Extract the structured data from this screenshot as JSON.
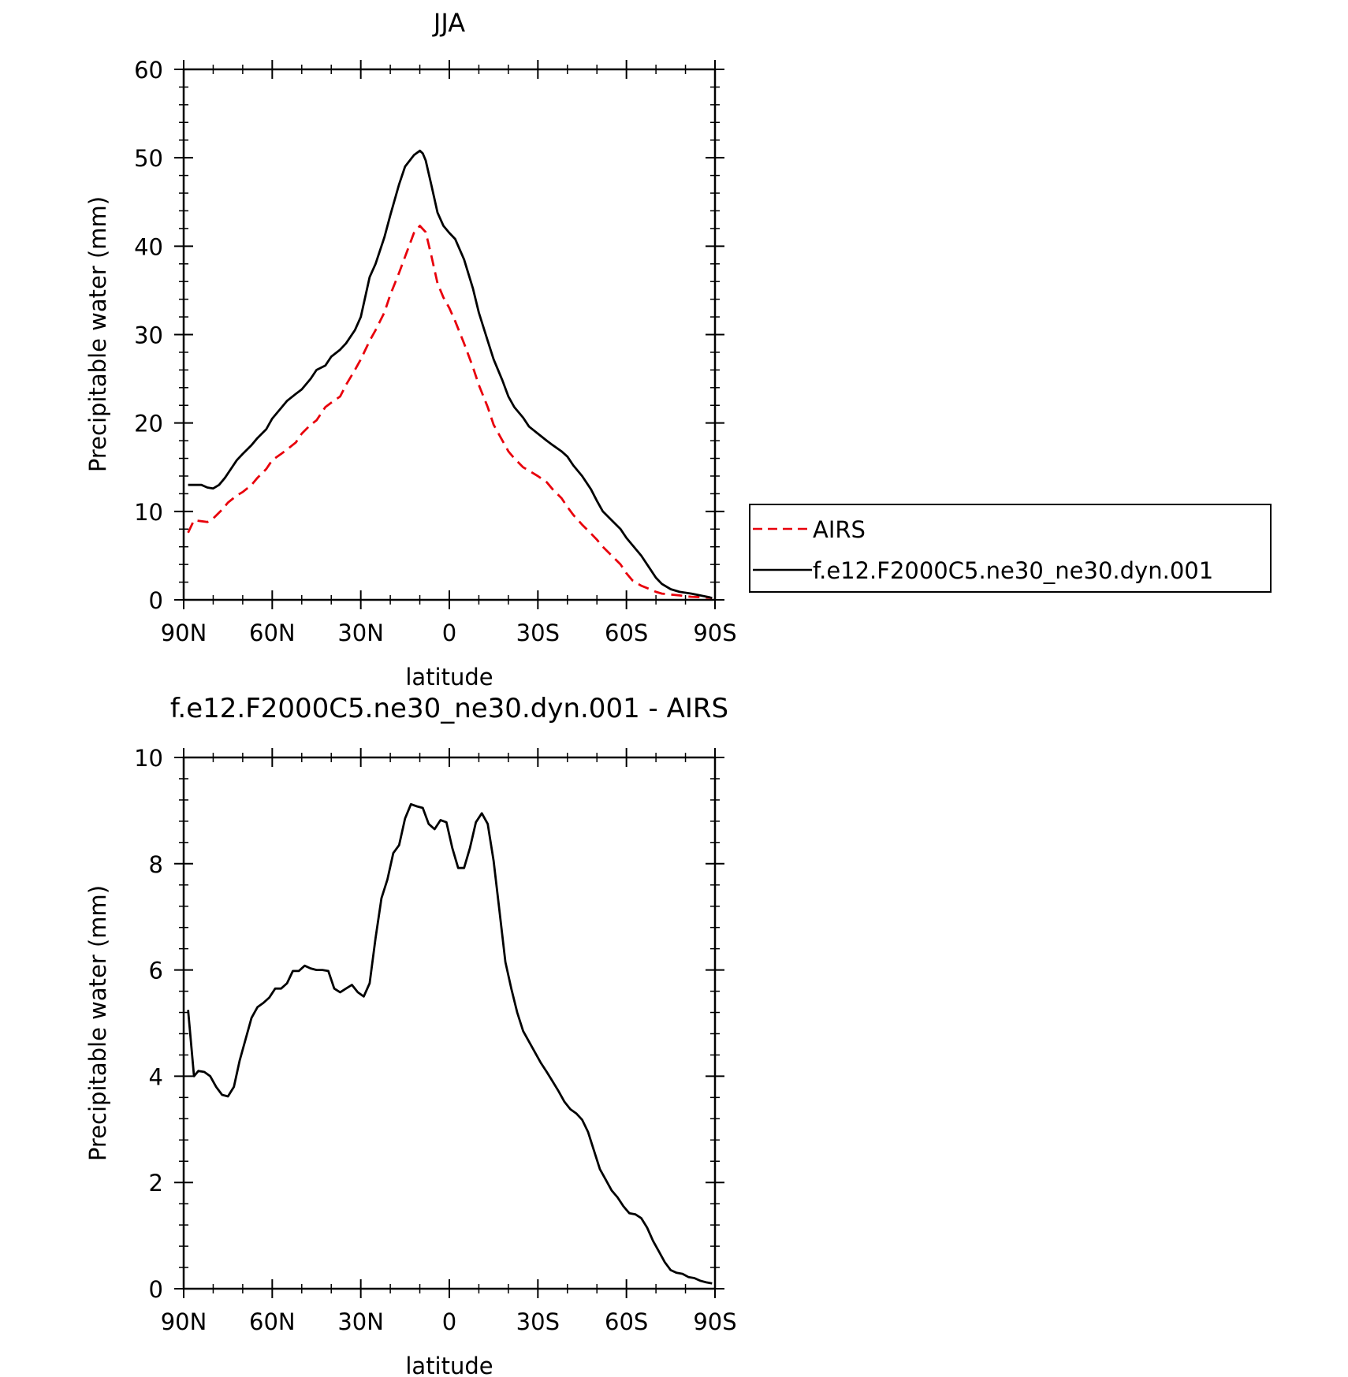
{
  "chart_data": [
    {
      "type": "line",
      "title": "JJA",
      "xlabel": "latitude",
      "ylabel": "Precipitable water (mm)",
      "xlim": [
        90,
        -90
      ],
      "ylim": [
        0,
        60
      ],
      "xticks": [
        90,
        60,
        30,
        0,
        -30,
        -60,
        -90
      ],
      "xticklabels": [
        "90N",
        "60N",
        "30N",
        "0",
        "30S",
        "60S",
        "90S"
      ],
      "yticks": [
        0,
        10,
        20,
        30,
        40,
        50,
        60
      ],
      "yticklabels": [
        "0",
        "10",
        "20",
        "30",
        "40",
        "50",
        "60"
      ],
      "legend": "right",
      "grid": false,
      "series": [
        {
          "name": "AIRS",
          "color": "#e8000b",
          "style": "dashed",
          "x": [
            88.5,
            86.5,
            82,
            80,
            77,
            75,
            72,
            70,
            67,
            65,
            62,
            60,
            57,
            55,
            52,
            50,
            47,
            45,
            42,
            40,
            37,
            35,
            32,
            30,
            27,
            25,
            22,
            20,
            17,
            15,
            12,
            10,
            8,
            6,
            4,
            2,
            0,
            -2,
            -5,
            -8,
            -10,
            -13,
            -15,
            -18,
            -20,
            -22,
            -25,
            -27,
            -30,
            -33,
            -35,
            -38,
            -40,
            -42,
            -45,
            -48,
            -50,
            -52,
            -55,
            -58,
            -60,
            -62,
            -65,
            -68,
            -70,
            -72,
            -75,
            -78,
            -80,
            -82,
            -85,
            -88,
            -89
          ],
          "y": [
            7.6,
            9,
            8.8,
            9.2,
            10.2,
            11,
            11.8,
            12.2,
            13,
            13.8,
            14.8,
            15.8,
            16.5,
            17,
            17.8,
            18.8,
            19.8,
            20.3,
            21.8,
            22.3,
            23,
            24.3,
            26,
            27.2,
            29.3,
            30.5,
            32.5,
            34.5,
            37,
            38.8,
            41.5,
            42.3,
            41.6,
            38.8,
            35.8,
            34.2,
            33,
            31.5,
            29,
            26.3,
            24.3,
            21.8,
            19.8,
            18,
            16.8,
            16,
            15,
            14.6,
            14,
            13.3,
            12.5,
            11.5,
            10.5,
            9.6,
            8.5,
            7.5,
            6.8,
            6,
            5,
            4,
            3,
            2.2,
            1.6,
            1.2,
            0.9,
            0.7,
            0.6,
            0.5,
            0.4,
            0.35,
            0.3,
            0.25,
            0.2
          ]
        },
        {
          "name": "f.e12.F2000C5.ne30_ne30.dyn.001",
          "color": "#000000",
          "style": "solid",
          "x": [
            88.5,
            86,
            84,
            82,
            80,
            78,
            76,
            74,
            72,
            70,
            67,
            65,
            62,
            60,
            57,
            55,
            52,
            50,
            47,
            45,
            42,
            40,
            37,
            35,
            32,
            30,
            27,
            25,
            22,
            20,
            17,
            15,
            12,
            10,
            9,
            8,
            6,
            4,
            2,
            0,
            -2,
            -5,
            -8,
            -10,
            -13,
            -15,
            -18,
            -20,
            -22,
            -25,
            -27,
            -30,
            -33,
            -35,
            -38,
            -40,
            -42,
            -45,
            -48,
            -50,
            -52,
            -55,
            -58,
            -60,
            -62,
            -65,
            -68,
            -70,
            -72,
            -75,
            -78,
            -80,
            -82,
            -85,
            -88,
            -89
          ],
          "y": [
            13,
            13,
            13,
            12.7,
            12.6,
            13,
            13.8,
            14.8,
            15.8,
            16.5,
            17.5,
            18.3,
            19.3,
            20.5,
            21.7,
            22.5,
            23.3,
            23.8,
            25,
            26,
            26.5,
            27.5,
            28.3,
            29,
            30.5,
            32,
            36.5,
            38,
            41,
            43.5,
            47,
            49,
            50.3,
            50.8,
            50.5,
            49.7,
            46.8,
            43.8,
            42.3,
            41.5,
            40.8,
            38.5,
            35.2,
            32.5,
            29.3,
            27.2,
            24.8,
            23,
            21.8,
            20.6,
            19.6,
            18.8,
            18,
            17.5,
            16.8,
            16.2,
            15.2,
            14,
            12.5,
            11.2,
            10,
            9,
            8,
            7,
            6.2,
            5,
            3.5,
            2.5,
            1.8,
            1.2,
            0.9,
            0.8,
            0.7,
            0.5,
            0.3,
            0.2
          ]
        }
      ]
    },
    {
      "type": "line",
      "title": "f.e12.F2000C5.ne30_ne30.dyn.001 - AIRS",
      "xlabel": "latitude",
      "ylabel": "Precipitable water (mm)",
      "xlim": [
        90,
        -90
      ],
      "ylim": [
        0,
        10
      ],
      "xticks": [
        90,
        60,
        30,
        0,
        -30,
        -60,
        -90
      ],
      "xticklabels": [
        "90N",
        "60N",
        "30N",
        "0",
        "30S",
        "60S",
        "90S"
      ],
      "yticks": [
        0,
        2,
        4,
        6,
        8,
        10
      ],
      "yticklabels": [
        "0",
        "2",
        "4",
        "6",
        "8",
        "10"
      ],
      "grid": false,
      "series": [
        {
          "color": "#000000",
          "style": "solid",
          "x": [
            88.5,
            86.5,
            85,
            83,
            81,
            79,
            77,
            75,
            73,
            71,
            69,
            67,
            65,
            63,
            61,
            59,
            57,
            55,
            53,
            51,
            49,
            47,
            45,
            43,
            41,
            39,
            37,
            35,
            33,
            31,
            29,
            27,
            25,
            23,
            21,
            19,
            17,
            15,
            13,
            11,
            9,
            7,
            5,
            3,
            1,
            -1,
            -3,
            -5,
            -7,
            -9,
            -11,
            -13,
            -15,
            -17,
            -19,
            -21,
            -23,
            -25,
            -27,
            -29,
            -31,
            -33,
            -35,
            -37,
            -39,
            -41,
            -43,
            -45,
            -47,
            -49,
            -51,
            -53,
            -55,
            -57,
            -59,
            -61,
            -63,
            -65,
            -67,
            -69,
            -71,
            -73,
            -75,
            -77,
            -79,
            -81,
            -83,
            -85,
            -87,
            -89
          ],
          "y": [
            5.25,
            4.0,
            4.1,
            4.08,
            4.0,
            3.8,
            3.65,
            3.62,
            3.8,
            4.3,
            4.7,
            5.1,
            5.3,
            5.38,
            5.48,
            5.65,
            5.65,
            5.75,
            5.98,
            5.98,
            6.08,
            6.03,
            6.0,
            6.0,
            5.98,
            5.65,
            5.58,
            5.65,
            5.72,
            5.58,
            5.5,
            5.75,
            6.6,
            7.35,
            7.7,
            8.2,
            8.35,
            8.85,
            9.12,
            9.08,
            9.05,
            8.75,
            8.65,
            8.82,
            8.78,
            8.3,
            7.92,
            7.92,
            8.3,
            8.78,
            8.95,
            8.75,
            8.05,
            7.1,
            6.15,
            5.65,
            5.2,
            4.85,
            4.65,
            4.45,
            4.25,
            4.08,
            3.9,
            3.72,
            3.52,
            3.38,
            3.3,
            3.18,
            2.95,
            2.6,
            2.25,
            2.05,
            1.85,
            1.72,
            1.55,
            1.42,
            1.4,
            1.33,
            1.15,
            0.9,
            0.7,
            0.5,
            0.35,
            0.3,
            0.28,
            0.22,
            0.2,
            0.15,
            0.12,
            0.1
          ]
        }
      ]
    }
  ],
  "legend": {
    "items": [
      {
        "label": "AIRS"
      },
      {
        "label": "f.e12.F2000C5.ne30_ne30.dyn.001"
      }
    ]
  }
}
